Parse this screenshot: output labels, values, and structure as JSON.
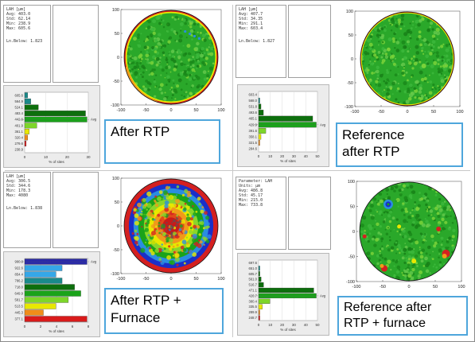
{
  "quadrants": [
    {
      "id": "q1",
      "stats": [
        "LAH [µm]",
        "Avg: 403.0",
        "Std: 62.14",
        "Min: 238.9",
        "Max: 605.6",
        "",
        "Ln.Below: 1.823"
      ],
      "hist_ticks": [
        "605.6",
        "564.9",
        "524.1",
        "483.4",
        "442.6",
        "401.9",
        "361.1",
        "320.4",
        "279.6",
        "238.9"
      ],
      "hist_xticks": [
        "0",
        "10",
        "20",
        "30"
      ],
      "hist_avg_label": "Avg",
      "hist_xlabel": "% of sites",
      "wafer_axis": [
        "-100",
        "-50",
        "0",
        "50",
        "100"
      ],
      "label_lines": [
        "After RTP"
      ]
    },
    {
      "id": "q2",
      "stats": [
        "LAH [µm]",
        "Avg: 407.7",
        "Std: 34.35",
        "Min: 291.1",
        "Max: 603.4",
        "",
        "Ln.Below: 1.827"
      ],
      "hist_ticks": [
        "603.4",
        "568.0",
        "531.8",
        "493.6",
        "465.1",
        "429.9",
        "391.6",
        "358.1",
        "321.5",
        "284.6"
      ],
      "hist_xticks": [
        "0",
        "10",
        "20",
        "30",
        "40",
        "50"
      ],
      "hist_avg_label": "Avg",
      "hist_xlabel": "% of sites",
      "wafer_axis": [
        "-100",
        "-50",
        "0",
        "50",
        "100"
      ],
      "label_lines": [
        "Reference",
        "after RTP"
      ]
    },
    {
      "id": "q3",
      "stats": [
        "LAH [µm]",
        "Avg: 306.5",
        "Std: 344.6",
        "Min: 178.3",
        "Max: 4080",
        "",
        "Ln.Below: 1.838"
      ],
      "hist_ticks": [
        "990.8",
        "922.6",
        "854.4",
        "786.2",
        "718.0",
        "649.9",
        "581.7",
        "513.5",
        "445.3",
        "377.1"
      ],
      "hist_xticks": [
        "0",
        "2",
        "4",
        "6",
        "8"
      ],
      "hist_avg_label": "Avg",
      "hist_xlabel": "% of sites",
      "wafer_axis": [
        "-100",
        "-50",
        "0",
        "50",
        "100"
      ],
      "label_lines": [
        "After RTP +",
        "Furnace"
      ]
    },
    {
      "id": "q4",
      "stats": [
        "Parameter: LAH",
        "Units: µm",
        "Avg: 486.8",
        "Std: 45.17",
        "Min: 215.0",
        "Max: 733.8"
      ],
      "hist_ticks": [
        "697.6",
        "651.0",
        "605.7",
        "561.0",
        "516.7",
        "471.1",
        "426.7",
        "380.4",
        "335.5",
        "289.9",
        "248.7"
      ],
      "hist_xticks": [
        "0",
        "10",
        "20",
        "30",
        "40",
        "50"
      ],
      "hist_avg_label": "Avg",
      "hist_xlabel": "% of sites",
      "wafer_axis": [
        "-100",
        "-50",
        "0",
        "50",
        "100"
      ],
      "label_lines": [
        "Reference after",
        "RTP + furnace"
      ]
    }
  ],
  "histograms": {
    "q1": [
      2,
      4,
      9,
      40,
      41,
      8,
      3,
      2,
      1,
      0
    ],
    "q2": [
      0,
      1,
      2,
      4,
      45,
      48,
      6,
      2,
      1,
      0
    ],
    "q3": [
      10,
      6,
      5,
      6,
      8,
      9,
      7,
      5,
      3,
      10
    ],
    "q4": [
      0,
      1,
      1,
      2,
      4,
      44,
      46,
      9,
      3,
      1,
      1
    ]
  },
  "colors": {
    "accent_border": "#4ea6dc",
    "green": "#1aa31a",
    "dark_green": "#0d6f0d",
    "yellow": "#e8e800",
    "orange": "#f08c1a",
    "red": "#d91a1a",
    "blue": "#1a3fd9",
    "light_blue": "#35a7e8",
    "teal": "#1a8a8a"
  }
}
